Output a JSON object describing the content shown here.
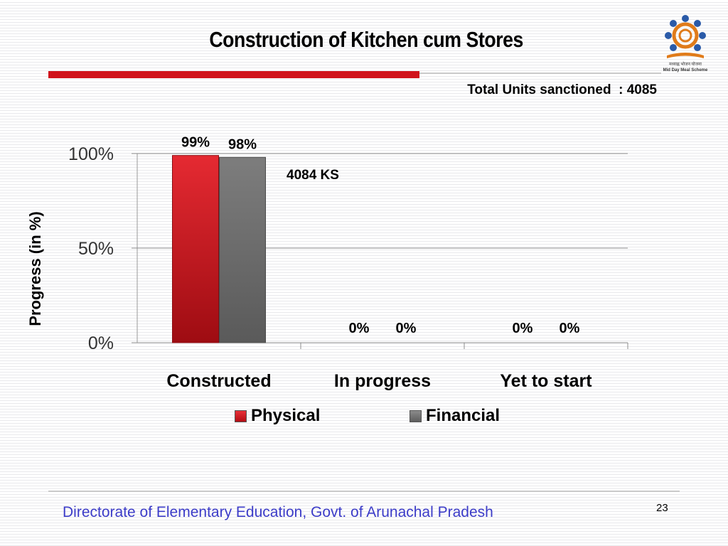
{
  "slide": {
    "title": "Construction of Kitchen cum Stores",
    "total_units": "Total Units sanctioned  : 4085",
    "footer": "Directorate of Elementary Education, Govt. of Arunachal Pradesh",
    "page_number": "23",
    "logo_text": "Mid Day Meal Scheme"
  },
  "colors": {
    "accent_red": "#d0121b",
    "physical": "#c8141c",
    "financial": "#6e6e6e",
    "footer_text": "#3c3cc8"
  },
  "chart_data": {
    "type": "bar",
    "categories": [
      "Constructed",
      "In progress",
      "Yet to start"
    ],
    "series": [
      {
        "name": "Physical",
        "values": [
          99,
          0,
          0
        ],
        "labels": [
          "99%",
          "0%",
          "0%"
        ]
      },
      {
        "name": "Financial",
        "values": [
          98,
          0,
          0
        ],
        "labels": [
          "98%",
          "0%",
          "0%"
        ]
      }
    ],
    "ylabel": "Progress (in %)",
    "yticks": [
      "0%",
      "50%",
      "100%"
    ],
    "ylim": [
      0,
      100
    ],
    "annotation": "4084 KS",
    "legend_position": "bottom",
    "grid": true
  }
}
